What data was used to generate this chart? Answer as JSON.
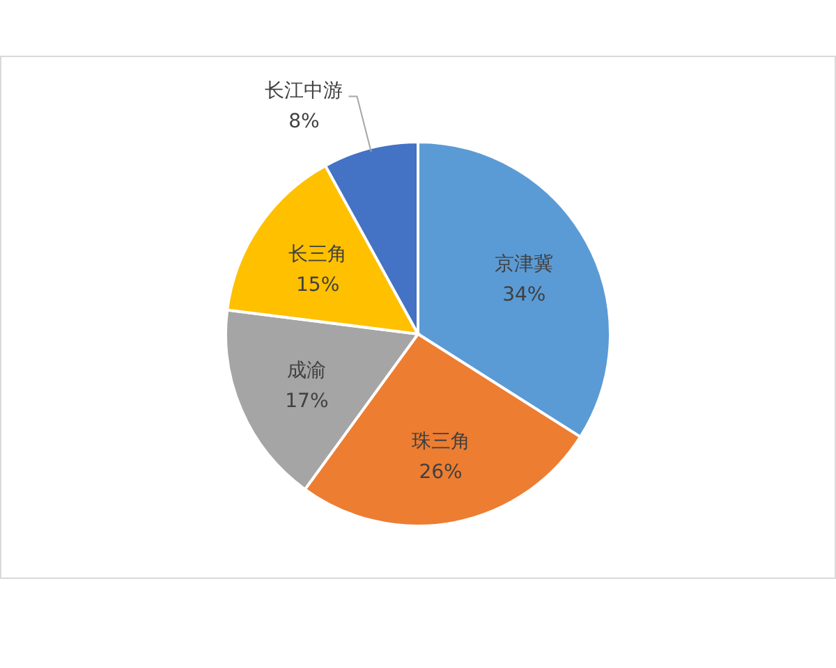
{
  "chart_data": {
    "type": "pie",
    "categories": [
      "京津冀",
      "珠三角",
      "成渝",
      "长三角",
      "长江中游"
    ],
    "values": [
      34,
      26,
      17,
      15,
      8
    ],
    "colors": [
      "#5b9bd5",
      "#ed7d31",
      "#a5a5a5",
      "#ffc000",
      "#4472c4"
    ],
    "value_labels": [
      "34%",
      "26%",
      "17%",
      "15%",
      "8%"
    ]
  }
}
